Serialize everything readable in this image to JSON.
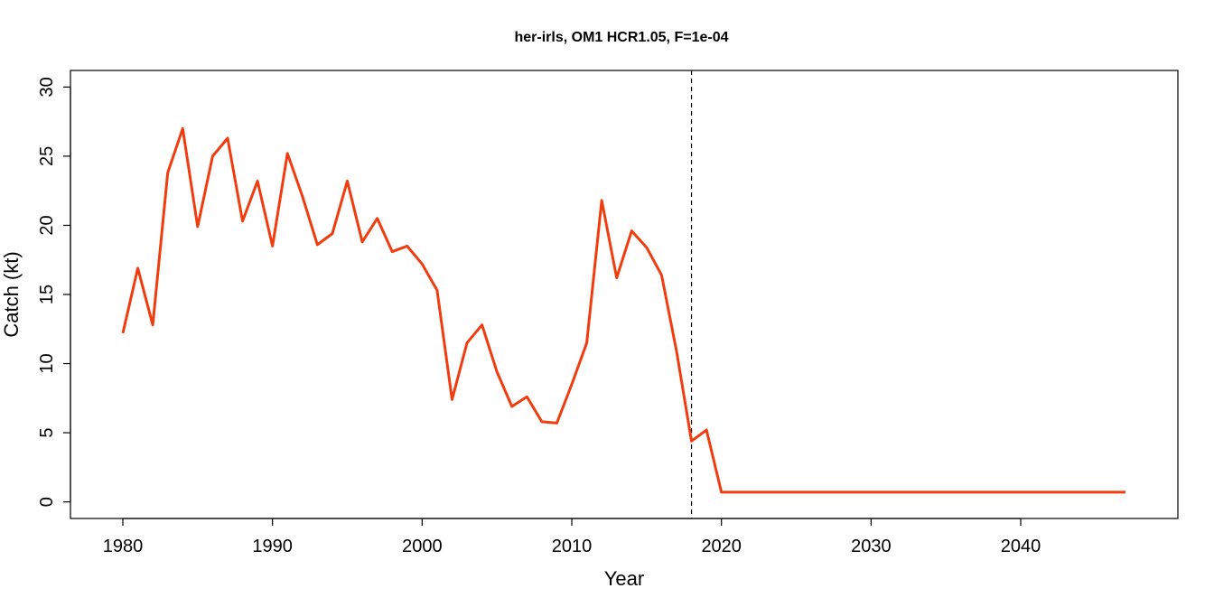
{
  "chart_data": {
    "type": "line",
    "title": "her-irls, OM1 HCR1.05, F=1e-04",
    "xlabel": "Year",
    "ylabel": "Catch (kt)",
    "xlim": [
      1976.5,
      2050.5
    ],
    "ylim": [
      -1.2,
      31.2
    ],
    "xticks": [
      1980,
      1990,
      2000,
      2010,
      2020,
      2030,
      2040
    ],
    "yticks": [
      0,
      5,
      10,
      15,
      20,
      25,
      30
    ],
    "grid": false,
    "line_color": "#f03c0e",
    "vline": {
      "x": 2018,
      "style": "dashed",
      "color": "#000000"
    },
    "series": [
      {
        "x": [
          1980,
          1981,
          1982,
          1983,
          1984,
          1985,
          1986,
          1987,
          1988,
          1989,
          1990,
          1991,
          1992,
          1993,
          1994,
          1995,
          1996,
          1997,
          1998,
          1999,
          2000,
          2001,
          2002,
          2003,
          2004,
          2005,
          2006,
          2007,
          2008,
          2009,
          2010,
          2011,
          2012,
          2013,
          2014,
          2015,
          2016,
          2017,
          2018,
          2019,
          2020,
          2021,
          2022,
          2023,
          2024,
          2025,
          2026,
          2027,
          2028,
          2029,
          2030,
          2031,
          2032,
          2033,
          2034,
          2035,
          2036,
          2037,
          2038,
          2039,
          2040,
          2041,
          2042,
          2043,
          2044,
          2045,
          2046,
          2047
        ],
        "values": [
          12.2,
          16.9,
          12.8,
          23.8,
          27.0,
          19.9,
          25.0,
          26.3,
          20.3,
          23.2,
          18.5,
          25.2,
          22.1,
          18.6,
          19.4,
          23.2,
          18.8,
          20.5,
          18.1,
          18.5,
          17.2,
          15.3,
          7.4,
          11.5,
          12.8,
          9.4,
          6.9,
          7.6,
          5.8,
          5.7,
          8.5,
          11.5,
          21.8,
          16.2,
          19.6,
          18.4,
          16.4,
          10.9,
          4.4,
          5.2,
          0.7,
          0.7,
          0.7,
          0.7,
          0.7,
          0.7,
          0.7,
          0.7,
          0.7,
          0.7,
          0.7,
          0.7,
          0.7,
          0.7,
          0.7,
          0.7,
          0.7,
          0.7,
          0.7,
          0.7,
          0.7,
          0.7,
          0.7,
          0.7,
          0.7,
          0.7,
          0.7,
          0.7
        ]
      }
    ]
  }
}
